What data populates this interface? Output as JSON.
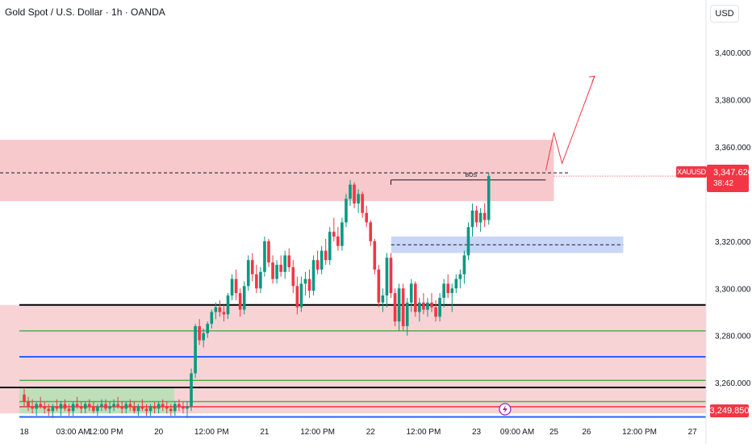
{
  "header": {
    "title": "Gold Spot / U.S. Dollar · 1h · OANDA",
    "currency_button": "USD"
  },
  "price_tag": {
    "symbol": "XAUUSD",
    "price": "3,347.620",
    "countdown": "38:42"
  },
  "bottom_price_tag": "3,249.850",
  "annotation_bos": "BOS",
  "colors": {
    "up": "#089981",
    "down": "#f23645",
    "resistance_zone": "#f8c9cc",
    "demand_zone": "#c9d6f8",
    "support_zone": "#f8d3d6",
    "green_box": "#b7e0b7",
    "arrow": "#f23645"
  },
  "chart_data": {
    "type": "candlestick",
    "title": "Gold Spot / U.S. Dollar · 1h · OANDA",
    "ylim": [
      3245,
      3412
    ],
    "y_ticks": [
      3400,
      3380,
      3360,
      3320,
      3300,
      3280,
      3260
    ],
    "y_tick_labels": [
      "3,400.000",
      "3,380.000",
      "3,360.000",
      "3,320.000",
      "3,300.000",
      "3,280.000",
      "3,260.000"
    ],
    "x_ticks": [
      {
        "bar": 0,
        "label": "18"
      },
      {
        "bar": 12,
        "label": "03:00 AM"
      },
      {
        "bar": 20,
        "label": "12:00 PM"
      },
      {
        "bar": 33,
        "label": "20"
      },
      {
        "bar": 46,
        "label": "12:00 PM"
      },
      {
        "bar": 59,
        "label": "21"
      },
      {
        "bar": 72,
        "label": "12:00 PM"
      },
      {
        "bar": 85,
        "label": "22"
      },
      {
        "bar": 98,
        "label": "12:00 PM"
      },
      {
        "bar": 111,
        "label": "23"
      },
      {
        "bar": 121,
        "label": "09:00 AM"
      },
      {
        "bar": 130,
        "label": "25"
      },
      {
        "bar": 138,
        "label": "26"
      },
      {
        "bar": 151,
        "label": "12:00 PM"
      },
      {
        "bar": 164,
        "label": "27"
      }
    ],
    "candles": [
      [
        3255,
        3258,
        3250,
        3252
      ],
      [
        3252,
        3254,
        3248,
        3250
      ],
      [
        3250,
        3253,
        3247,
        3249
      ],
      [
        3249,
        3252,
        3246,
        3251
      ],
      [
        3251,
        3254,
        3249,
        3250
      ],
      [
        3250,
        3252,
        3247,
        3249
      ],
      [
        3249,
        3251,
        3246,
        3248
      ],
      [
        3248,
        3251,
        3245,
        3250
      ],
      [
        3250,
        3253,
        3248,
        3249
      ],
      [
        3249,
        3252,
        3246,
        3251
      ],
      [
        3251,
        3253,
        3248,
        3249
      ],
      [
        3249,
        3251,
        3246,
        3248
      ],
      [
        3248,
        3252,
        3246,
        3251
      ],
      [
        3251,
        3254,
        3249,
        3250
      ],
      [
        3250,
        3252,
        3247,
        3249
      ],
      [
        3249,
        3252,
        3247,
        3251
      ],
      [
        3251,
        3253,
        3248,
        3250
      ],
      [
        3250,
        3252,
        3247,
        3248
      ],
      [
        3248,
        3251,
        3246,
        3250
      ],
      [
        3250,
        3253,
        3248,
        3251
      ],
      [
        3251,
        3253,
        3248,
        3249
      ],
      [
        3249,
        3252,
        3247,
        3250
      ],
      [
        3250,
        3253,
        3248,
        3251
      ],
      [
        3251,
        3254,
        3249,
        3250
      ],
      [
        3250,
        3252,
        3247,
        3249
      ],
      [
        3249,
        3252,
        3247,
        3251
      ],
      [
        3251,
        3253,
        3248,
        3250
      ],
      [
        3250,
        3252,
        3247,
        3248
      ],
      [
        3248,
        3251,
        3246,
        3250
      ],
      [
        3250,
        3253,
        3248,
        3249
      ],
      [
        3249,
        3251,
        3246,
        3248
      ],
      [
        3248,
        3251,
        3246,
        3250
      ],
      [
        3250,
        3252,
        3247,
        3249
      ],
      [
        3249,
        3252,
        3247,
        3251
      ],
      [
        3251,
        3253,
        3248,
        3250
      ],
      [
        3250,
        3252,
        3247,
        3249
      ],
      [
        3249,
        3251,
        3246,
        3248
      ],
      [
        3248,
        3252,
        3246,
        3251
      ],
      [
        3251,
        3253,
        3248,
        3250
      ],
      [
        3250,
        3252,
        3247,
        3249
      ],
      [
        3249,
        3252,
        3245,
        3250
      ],
      [
        3250,
        3266,
        3248,
        3264
      ],
      [
        3264,
        3285,
        3262,
        3284
      ],
      [
        3284,
        3287,
        3276,
        3278
      ],
      [
        3278,
        3283,
        3275,
        3281
      ],
      [
        3281,
        3286,
        3279,
        3285
      ],
      [
        3285,
        3291,
        3283,
        3290
      ],
      [
        3290,
        3294,
        3287,
        3292
      ],
      [
        3292,
        3295,
        3288,
        3290
      ],
      [
        3290,
        3293,
        3286,
        3289
      ],
      [
        3289,
        3298,
        3287,
        3297
      ],
      [
        3297,
        3306,
        3295,
        3304
      ],
      [
        3304,
        3308,
        3295,
        3298
      ],
      [
        3298,
        3300,
        3288,
        3291
      ],
      [
        3291,
        3303,
        3289,
        3301
      ],
      [
        3301,
        3314,
        3299,
        3312
      ],
      [
        3312,
        3315,
        3303,
        3306
      ],
      [
        3306,
        3310,
        3298,
        3300
      ],
      [
        3300,
        3309,
        3298,
        3307
      ],
      [
        3307,
        3322,
        3305,
        3320
      ],
      [
        3320,
        3321,
        3309,
        3311
      ],
      [
        3311,
        3314,
        3302,
        3304
      ],
      [
        3304,
        3312,
        3302,
        3310
      ],
      [
        3310,
        3314,
        3305,
        3307
      ],
      [
        3307,
        3316,
        3304,
        3314
      ],
      [
        3314,
        3317,
        3307,
        3309
      ],
      [
        3309,
        3312,
        3298,
        3301
      ],
      [
        3301,
        3305,
        3289,
        3292
      ],
      [
        3292,
        3305,
        3290,
        3302
      ],
      [
        3302,
        3307,
        3297,
        3304
      ],
      [
        3304,
        3308,
        3296,
        3299
      ],
      [
        3299,
        3314,
        3297,
        3312
      ],
      [
        3312,
        3316,
        3306,
        3308
      ],
      [
        3308,
        3318,
        3306,
        3316
      ],
      [
        3316,
        3321,
        3310,
        3312
      ],
      [
        3312,
        3326,
        3310,
        3324
      ],
      [
        3324,
        3330,
        3320,
        3322
      ],
      [
        3322,
        3326,
        3316,
        3318
      ],
      [
        3318,
        3330,
        3316,
        3328
      ],
      [
        3328,
        3340,
        3326,
        3338
      ],
      [
        3338,
        3346,
        3335,
        3344
      ],
      [
        3344,
        3345,
        3334,
        3336
      ],
      [
        3336,
        3342,
        3332,
        3340
      ],
      [
        3340,
        3341,
        3330,
        3332
      ],
      [
        3332,
        3335,
        3326,
        3328
      ],
      [
        3328,
        3329,
        3318,
        3320
      ],
      [
        3320,
        3321,
        3306,
        3308
      ],
      [
        3308,
        3310,
        3292,
        3294
      ],
      [
        3294,
        3300,
        3290,
        3297
      ],
      [
        3297,
        3315,
        3292,
        3313
      ],
      [
        3313,
        3315,
        3296,
        3298
      ],
      [
        3298,
        3300,
        3284,
        3286
      ],
      [
        3286,
        3302,
        3282,
        3300
      ],
      [
        3300,
        3302,
        3282,
        3284
      ],
      [
        3284,
        3296,
        3280,
        3294
      ],
      [
        3294,
        3304,
        3290,
        3302
      ],
      [
        3302,
        3303,
        3288,
        3290
      ],
      [
        3290,
        3296,
        3286,
        3294
      ],
      [
        3294,
        3298,
        3289,
        3291
      ],
      [
        3291,
        3296,
        3288,
        3294
      ],
      [
        3294,
        3298,
        3290,
        3292
      ],
      [
        3292,
        3295,
        3286,
        3288
      ],
      [
        3288,
        3298,
        3286,
        3296
      ],
      [
        3296,
        3304,
        3292,
        3302
      ],
      [
        3302,
        3306,
        3296,
        3298
      ],
      [
        3298,
        3302,
        3290,
        3300
      ],
      [
        3300,
        3306,
        3298,
        3304
      ],
      [
        3304,
        3308,
        3300,
        3306
      ],
      [
        3306,
        3316,
        3302,
        3314
      ],
      [
        3314,
        3328,
        3312,
        3326
      ],
      [
        3326,
        3336,
        3322,
        3333
      ],
      [
        3333,
        3335,
        3326,
        3328
      ],
      [
        3328,
        3334,
        3324,
        3332
      ],
      [
        3332,
        3336,
        3326,
        3329
      ],
      [
        3329,
        3349,
        3327,
        3347.62
      ]
    ],
    "resistance_zone": {
      "from_bar": 0,
      "to_bar": 130,
      "y_low": 3337,
      "y_high": 3363,
      "color": "#f8c9cc"
    },
    "demand_zone": {
      "from_bar": 96,
      "to_bar": 147,
      "y_low": 3315,
      "y_high": 3322,
      "color": "#c9d6f8"
    },
    "support_zone": {
      "from_bar": 0,
      "to_bar": 180,
      "y_low": 3247,
      "y_high": 3293,
      "color": "#f8d3d6"
    },
    "green_box": {
      "from_bar": 0,
      "to_bar": 40,
      "y_low": 3247,
      "y_high": 3258
    },
    "horizontal_lines": [
      {
        "y": 3293,
        "color": "#000000",
        "width": 2,
        "from_bar": 0
      },
      {
        "y": 3282,
        "color": "#4caf50",
        "width": 1.5,
        "from_bar": 0
      },
      {
        "y": 3271,
        "color": "#2962ff",
        "width": 2,
        "from_bar": 0
      },
      {
        "y": 3261,
        "color": "#4caf50",
        "width": 1.5,
        "from_bar": 0
      },
      {
        "y": 3258,
        "color": "#000000",
        "width": 2,
        "from_bar": -5
      },
      {
        "y": 3252,
        "color": "#4caf50",
        "width": 1.5,
        "from_bar": 0
      },
      {
        "y": 3249.85,
        "color": "#f23645",
        "width": 1.5,
        "from_bar": 0
      },
      {
        "y": 3245.5,
        "color": "#2962ff",
        "width": 2,
        "from_bar": 0
      }
    ],
    "bos": {
      "y": 3346,
      "from_bar": 90,
      "to_bar": 128,
      "label": "BOS"
    },
    "dashed_levels": [
      {
        "y": 3349,
        "from_bar": 0,
        "to_bar": 134
      },
      {
        "y": 3318.5,
        "from_bar": 96,
        "to_bar": 147
      }
    ],
    "current_price": 3347.62,
    "projection": [
      [
        128,
        3350
      ],
      [
        130,
        3366
      ],
      [
        132,
        3353
      ],
      [
        140,
        3390
      ]
    ]
  }
}
